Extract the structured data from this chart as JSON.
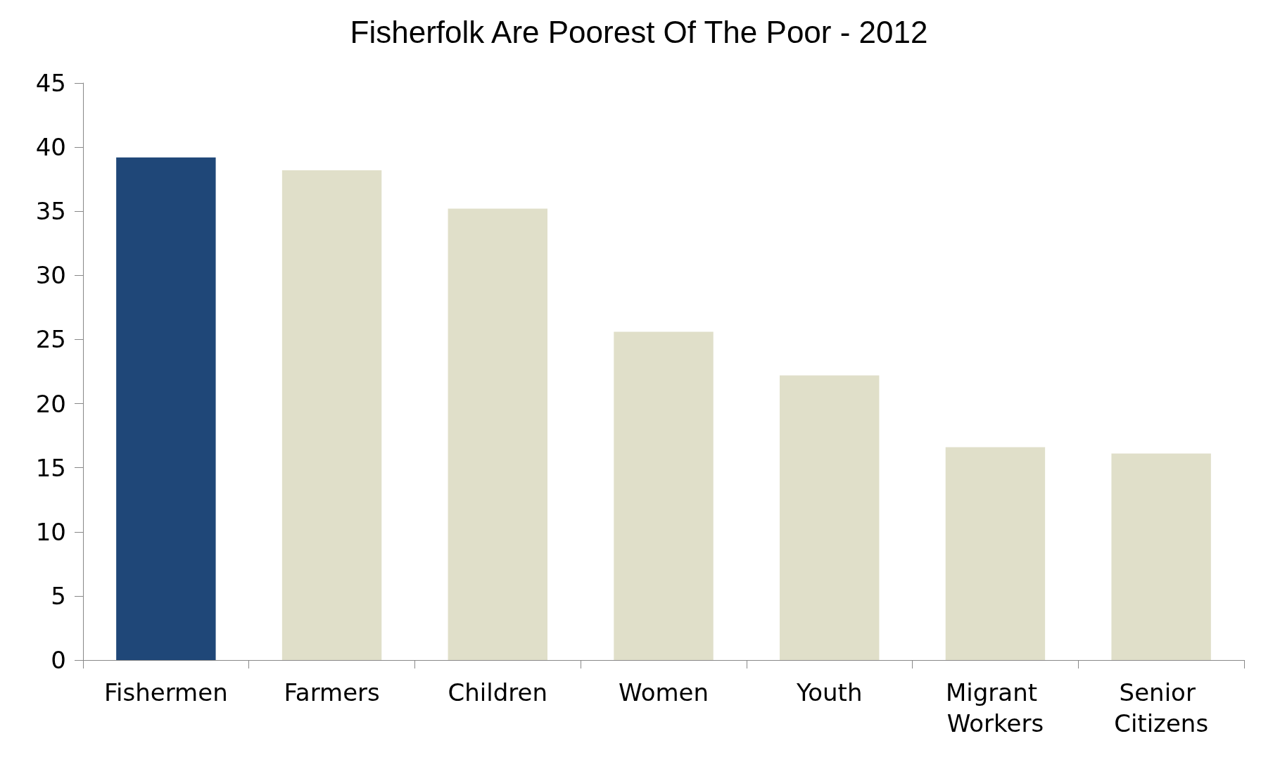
{
  "chart_data": {
    "type": "bar",
    "title": "Fisherfolk Are Poorest Of The Poor - 2012",
    "categories": [
      "Fishermen",
      "Farmers",
      "Children",
      "Women",
      "Youth",
      "Migrant Workers",
      "Senior Citizens"
    ],
    "values": [
      39.2,
      38.2,
      35.2,
      25.6,
      22.2,
      16.6,
      16.1
    ],
    "colors": [
      "#1f4778",
      "#e0dfc9",
      "#e0dfc9",
      "#e0dfc9",
      "#e0dfc9",
      "#e0dfc9",
      "#e0dfc9"
    ],
    "ylim": [
      0,
      45
    ],
    "yticks": [
      0,
      5,
      10,
      15,
      20,
      25,
      30,
      35,
      40,
      45
    ]
  }
}
